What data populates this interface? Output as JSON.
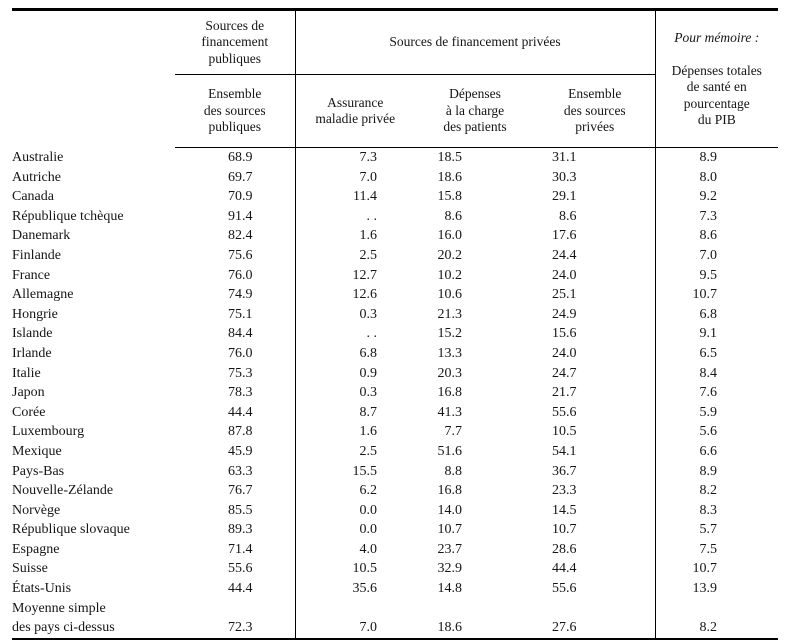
{
  "colors": {
    "background": "#ffffff",
    "text": "#151515",
    "rule": "#000000"
  },
  "table": {
    "headers": {
      "public_group": "Sources de\nfinancement\npubliques",
      "private_group": "Sources de financement privées",
      "memo_italic": "Pour mémoire :",
      "memo_rest": "Dépenses totales\nde santé en\npourcentage\ndu PIB",
      "public_total": "Ensemble\ndes sources\npubliques",
      "private_insurance": "Assurance\nmaladie privée",
      "out_of_pocket": "Dépenses\nà la charge\ndes patients",
      "private_total": "Ensemble\ndes sources\nprivées"
    },
    "missing_value_symbol": ". .",
    "rows": [
      {
        "name": "Australie",
        "values": [
          "68.9",
          "7.3",
          "18.5",
          "31.1",
          "8.9"
        ]
      },
      {
        "name": "Autriche",
        "values": [
          "69.7",
          "7.0",
          "18.6",
          "30.3",
          "8.0"
        ]
      },
      {
        "name": "Canada",
        "values": [
          "70.9",
          "11.4",
          "15.8",
          "29.1",
          "9.2"
        ]
      },
      {
        "name": "République tchèque",
        "values": [
          "91.4",
          ". .",
          "8.6",
          "8.6",
          "7.3"
        ]
      },
      {
        "name": "Danemark",
        "values": [
          "82.4",
          "1.6",
          "16.0",
          "17.6",
          "8.6"
        ]
      },
      {
        "name": "Finlande",
        "values": [
          "75.6",
          "2.5",
          "20.2",
          "24.4",
          "7.0"
        ]
      },
      {
        "name": "France",
        "values": [
          "76.0",
          "12.7",
          "10.2",
          "24.0",
          "9.5"
        ]
      },
      {
        "name": "Allemagne",
        "values": [
          "74.9",
          "12.6",
          "10.6",
          "25.1",
          "10.7"
        ]
      },
      {
        "name": "Hongrie",
        "values": [
          "75.1",
          "0.3",
          "21.3",
          "24.9",
          "6.8"
        ]
      },
      {
        "name": "Islande",
        "values": [
          "84.4",
          ". .",
          "15.2",
          "15.6",
          "9.1"
        ]
      },
      {
        "name": "Irlande",
        "values": [
          "76.0",
          "6.8",
          "13.3",
          "24.0",
          "6.5"
        ]
      },
      {
        "name": "Italie",
        "values": [
          "75.3",
          "0.9",
          "20.3",
          "24.7",
          "8.4"
        ]
      },
      {
        "name": "Japon",
        "values": [
          "78.3",
          "0.3",
          "16.8",
          "21.7",
          "7.6"
        ]
      },
      {
        "name": "Corée",
        "values": [
          "44.4",
          "8.7",
          "41.3",
          "55.6",
          "5.9"
        ]
      },
      {
        "name": "Luxembourg",
        "values": [
          "87.8",
          "1.6",
          "7.7",
          "10.5",
          "5.6"
        ]
      },
      {
        "name": "Mexique",
        "values": [
          "45.9",
          "2.5",
          "51.6",
          "54.1",
          "6.6"
        ]
      },
      {
        "name": "Pays-Bas",
        "values": [
          "63.3",
          "15.5",
          "8.8",
          "36.7",
          "8.9"
        ]
      },
      {
        "name": "Nouvelle-Zélande",
        "values": [
          "76.7",
          "6.2",
          "16.8",
          "23.3",
          "8.2"
        ]
      },
      {
        "name": "Norvège",
        "values": [
          "85.5",
          "0.0",
          "14.0",
          "14.5",
          "8.3"
        ]
      },
      {
        "name": "République slovaque",
        "values": [
          "89.3",
          "0.0",
          "10.7",
          "10.7",
          "5.7"
        ]
      },
      {
        "name": "Espagne",
        "values": [
          "71.4",
          "4.0",
          "23.7",
          "28.6",
          "7.5"
        ]
      },
      {
        "name": "Suisse",
        "values": [
          "55.6",
          "10.5",
          "32.9",
          "44.4",
          "10.7"
        ]
      },
      {
        "name": "États-Unis",
        "values": [
          "44.4",
          "35.6",
          "14.8",
          "55.6",
          "13.9"
        ]
      },
      {
        "name": "Moyenne simple\ndes pays ci-dessus",
        "values": [
          "72.3",
          "7.0",
          "18.6",
          "27.6",
          "8.2"
        ]
      }
    ]
  }
}
